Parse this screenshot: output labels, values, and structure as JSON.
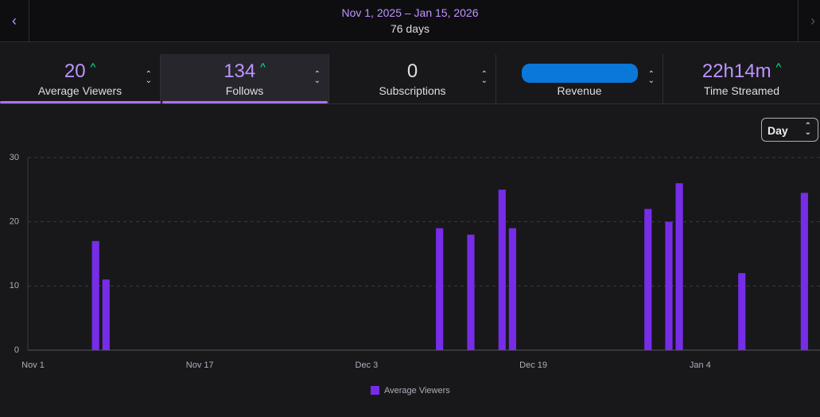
{
  "header": {
    "date_range": "Nov 1, 2025 – Jan 15, 2026",
    "duration": "76 days"
  },
  "stats": [
    {
      "value": "20",
      "label": "Average Viewers"
    },
    {
      "value": "134",
      "label": "Follows"
    },
    {
      "value": "0",
      "label": "Subscriptions"
    },
    {
      "label": "Revenue"
    },
    {
      "value": "22h14m",
      "label": "Time Streamed"
    }
  ],
  "interval_selector": "Day",
  "chart_data": {
    "type": "bar",
    "x": [
      6,
      7,
      39,
      42,
      45,
      46,
      59,
      61,
      62,
      68,
      74
    ],
    "xlim": [
      -0.5,
      75.5
    ],
    "xticks": [
      {
        "value": 0,
        "label": "Nov 1"
      },
      {
        "value": 16,
        "label": "Nov 17"
      },
      {
        "value": 32,
        "label": "Dec 3"
      },
      {
        "value": 48,
        "label": "Dec 19"
      },
      {
        "value": 64,
        "label": "Jan 4"
      }
    ],
    "series": [
      {
        "name": "Average Viewers",
        "color": "#772ce8",
        "values": [
          17,
          11,
          19,
          18,
          25,
          19,
          22,
          20,
          26,
          12,
          24.5
        ]
      }
    ],
    "ylim": [
      0,
      30
    ],
    "yticks": [
      0,
      10,
      20,
      30
    ],
    "grid": true
  }
}
